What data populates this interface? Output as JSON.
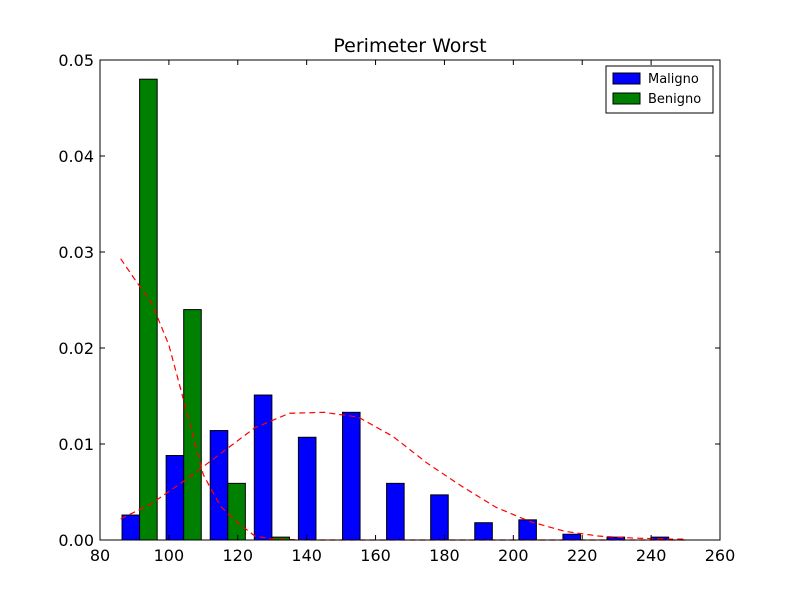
{
  "chart_data": {
    "type": "bar",
    "title": "Perimeter Worst",
    "xlabel": "",
    "ylabel": "",
    "xlim": [
      80,
      260
    ],
    "ylim": [
      0,
      0.05
    ],
    "xticks": [
      80,
      100,
      120,
      140,
      160,
      180,
      200,
      220,
      240,
      260
    ],
    "xtick_labels": [
      "80",
      "100",
      "120",
      "140",
      "160",
      "180",
      "200",
      "220",
      "240",
      "260"
    ],
    "yticks": [
      0,
      0.01,
      0.02,
      0.03,
      0.04,
      0.05
    ],
    "ytick_labels": [
      "0.00",
      "0.01",
      "0.02",
      "0.03",
      "0.04",
      "0.05"
    ],
    "grid": false,
    "legend": {
      "position": "top-right"
    },
    "bin_width_data": 12.8,
    "series": [
      {
        "name": "Maligno",
        "color": "#0000ff",
        "bins": [
          {
            "x0": 86.4,
            "x1": 91.5,
            "value": 0.0026
          },
          {
            "x0": 99.2,
            "x1": 104.3,
            "value": 0.0088
          },
          {
            "x0": 112.0,
            "x1": 117.1,
            "value": 0.0114
          },
          {
            "x0": 124.8,
            "x1": 129.9,
            "value": 0.0151
          },
          {
            "x0": 137.6,
            "x1": 142.7,
            "value": 0.0107
          },
          {
            "x0": 150.4,
            "x1": 155.5,
            "value": 0.0133
          },
          {
            "x0": 163.2,
            "x1": 168.3,
            "value": 0.0059
          },
          {
            "x0": 176.0,
            "x1": 181.1,
            "value": 0.0047
          },
          {
            "x0": 188.8,
            "x1": 193.9,
            "value": 0.0018
          },
          {
            "x0": 201.6,
            "x1": 206.7,
            "value": 0.0021
          },
          {
            "x0": 214.4,
            "x1": 219.5,
            "value": 0.0006
          },
          {
            "x0": 227.2,
            "x1": 232.3,
            "value": 0.0003
          },
          {
            "x0": 240.0,
            "x1": 245.1,
            "value": 0.0003
          }
        ]
      },
      {
        "name": "Benigno",
        "color": "#008000",
        "bins": [
          {
            "x0": 91.5,
            "x1": 96.6,
            "value": 0.048
          },
          {
            "x0": 104.3,
            "x1": 109.4,
            "value": 0.024
          },
          {
            "x0": 117.1,
            "x1": 122.2,
            "value": 0.0059
          },
          {
            "x0": 129.9,
            "x1": 135.0,
            "value": 0.0003
          },
          {
            "x0": 142.7,
            "x1": 147.8,
            "value": 0
          },
          {
            "x0": 155.5,
            "x1": 160.6,
            "value": 0
          },
          {
            "x0": 168.3,
            "x1": 173.4,
            "value": 0
          },
          {
            "x0": 181.1,
            "x1": 186.2,
            "value": 0
          },
          {
            "x0": 193.9,
            "x1": 199.0,
            "value": 0
          },
          {
            "x0": 206.7,
            "x1": 211.8,
            "value": 0
          },
          {
            "x0": 219.5,
            "x1": 224.6,
            "value": 0
          },
          {
            "x0": 232.3,
            "x1": 237.4,
            "value": 0
          },
          {
            "x0": 245.1,
            "x1": 250.2,
            "value": 0
          }
        ]
      }
    ],
    "density_curves": [
      {
        "color": "#ff0000",
        "style": "dashed",
        "points": [
          [
            86,
            0.0022
          ],
          [
            95,
            0.0038
          ],
          [
            105,
            0.0063
          ],
          [
            115,
            0.009
          ],
          [
            125,
            0.0117
          ],
          [
            135,
            0.0132
          ],
          [
            145,
            0.0133
          ],
          [
            155,
            0.0128
          ],
          [
            165,
            0.0108
          ],
          [
            175,
            0.008
          ],
          [
            185,
            0.0056
          ],
          [
            195,
            0.0034
          ],
          [
            205,
            0.0019
          ],
          [
            215,
            0.0009
          ],
          [
            225,
            0.0004
          ],
          [
            235,
            0.0002
          ],
          [
            245,
            0.0001
          ],
          [
            250,
            0.0001
          ]
        ]
      },
      {
        "color": "#ff0000",
        "style": "dashed",
        "points": [
          [
            86,
            0.0293
          ],
          [
            90,
            0.0272
          ],
          [
            95,
            0.0247
          ],
          [
            100,
            0.0203
          ],
          [
            105,
            0.0136
          ],
          [
            110,
            0.0068
          ],
          [
            115,
            0.0035
          ],
          [
            120,
            0.0018
          ],
          [
            125,
            0.0004
          ],
          [
            130,
            0.0001
          ],
          [
            140,
            0
          ],
          [
            160,
            0
          ],
          [
            200,
            0
          ],
          [
            250,
            0
          ]
        ]
      }
    ]
  }
}
